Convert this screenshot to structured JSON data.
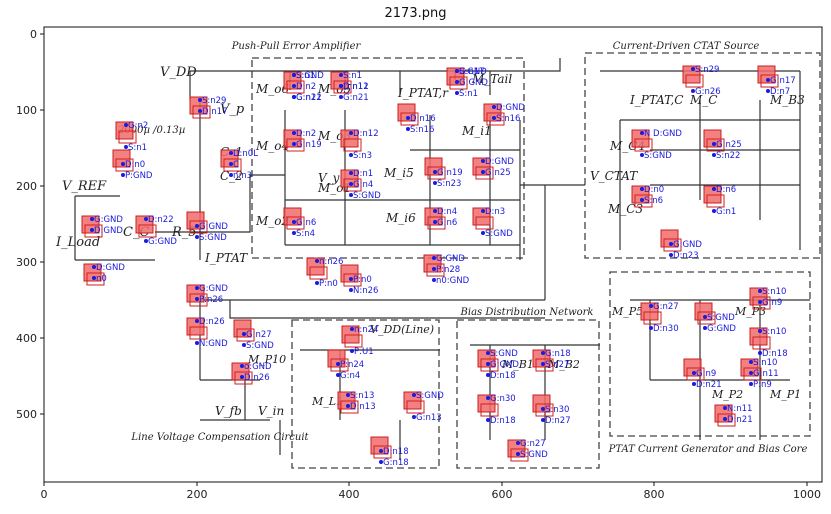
{
  "title": "2173.png",
  "axes": {
    "x_ticks": [
      "0",
      "200",
      "400",
      "600",
      "800",
      "1000"
    ],
    "y_ticks": [
      "0",
      "100",
      "200",
      "300",
      "400",
      "500"
    ]
  },
  "blocks": [
    {
      "key": "push_pull",
      "title": "Push-Pull Error Amplifier"
    },
    {
      "key": "ctat",
      "title": "Current-Driven CTAT Source"
    },
    {
      "key": "bias",
      "title": "Bias Distribution   Network"
    },
    {
      "key": "ptat_core",
      "title": "PTAT Current Generator and Bias Core"
    },
    {
      "key": "line_comp",
      "title": "Line Voltage Compensation Circuit"
    }
  ],
  "schematic_labels": [
    "V_DD",
    "V_REF",
    "I_Load",
    "C_C",
    "R_5",
    "C_1",
    "C_2",
    "V_p",
    "V_y",
    "I_PTAT",
    "I_PTAT,r",
    "I_PTAT,C",
    "V_CTAT",
    "V_DD(Line)",
    "V_fb",
    "V_in",
    "M_o6",
    "M_o5",
    "M_o4",
    "M_o3",
    "M_o2",
    "M_o1",
    "M_i6",
    "M_i5",
    "M_i1",
    "M_Tail",
    "M_C",
    "M_B3",
    "M_C4",
    "M_C3",
    "M_P10",
    "M_P2",
    "M_P1",
    "M_P5",
    "M_P3",
    "M_L1",
    "M_B1",
    "M_B2",
    "2000µ /0.13µ"
  ],
  "annotations": [
    "S:n1",
    "D:n2",
    "G:n12",
    "S:n1",
    "D:n12",
    "S:n1",
    "G:n17",
    "D:n16",
    "S:n16",
    "D:GND",
    "S:n16",
    "G:n26",
    "S:n29",
    "G:n17",
    "D:n7",
    "S:n29",
    "D:n17",
    "S:n1",
    "G:n2",
    "D:n0",
    "P:GND",
    "D:n0L",
    "C",
    "n:n3",
    "D:n2",
    "G:n19",
    "S:n3",
    "D:n12",
    "G:n19",
    "S:n23",
    "D:GND",
    "G:n25",
    "S:GND",
    "N D:GND",
    "G:n25",
    "S:n22",
    "D:n0",
    "S:n6",
    "G:n1",
    "D:n6",
    "G:n6",
    "S:n4",
    "D:n1",
    "G:n4",
    "S:GND",
    "D:n4",
    "G:n6",
    "S:GND",
    "D:n3",
    "G:GND",
    "D:n23",
    "G:GND",
    "D:GND",
    "G:GND",
    "D:n22",
    "G:GND",
    "S:GND",
    "D:GND",
    "n0",
    "P:n0",
    "n:n26",
    "P:n0",
    "N:n26",
    "G:GND",
    "P:n28",
    "n0:GND",
    "G:GND",
    "P:n26",
    "N:GND",
    "D:n26",
    "G:n27",
    "S:GND",
    "o:GND",
    "D:n26",
    "P:U1",
    "n:n24",
    "P:n24",
    "G:n4",
    "S:n13",
    "D:n13",
    "G:n13",
    "S:GND",
    "D:n18",
    "G:n18",
    "S:GND",
    "G:GND",
    "D:n18",
    "G:n18",
    "S:n27",
    "D:n18",
    "G:n30",
    "S:n30",
    "D:n27",
    "G:n27",
    "S:GND",
    "D:n30",
    "G:n27",
    "S:GND",
    "G:GND",
    "S:n10",
    "G:n9",
    "D:n18",
    "S:n10",
    "G:n9",
    "D:n21",
    "S:n10",
    "G:n11",
    "P:n9",
    "N:n11",
    "D:n21",
    "G:n21",
    "S:GND",
    "D:n11",
    "G:n21",
    "S:GND",
    "G:GND"
  ]
}
